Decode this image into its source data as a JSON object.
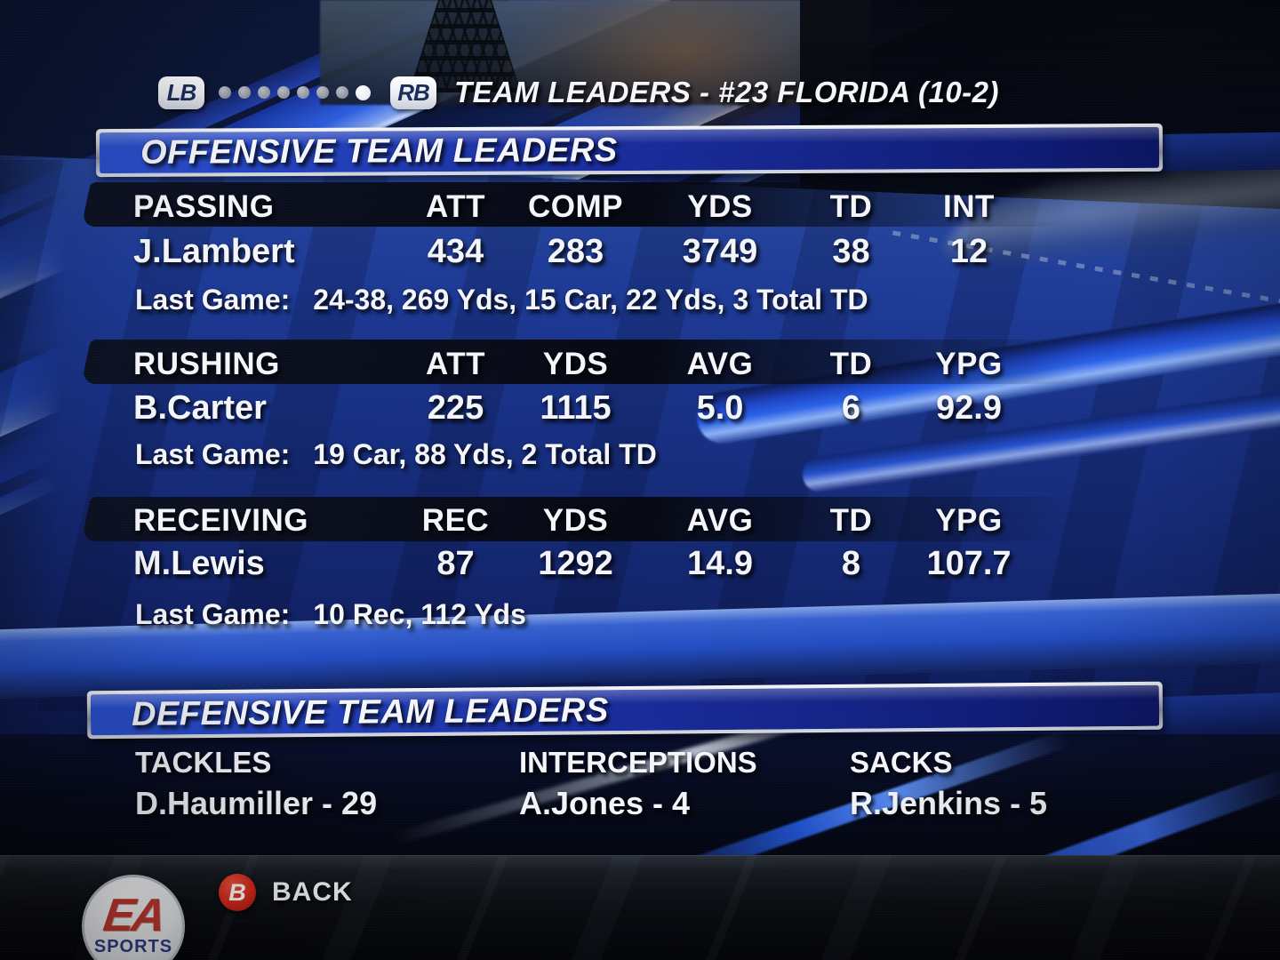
{
  "top_bar": {
    "lb_button": "LB",
    "rb_button": "RB",
    "title": "TEAM LEADERS - #23 FLORIDA (10-2)",
    "page_dots": {
      "total": 8,
      "active_index": 8
    }
  },
  "offense": {
    "banner": "OFFENSIVE TEAM LEADERS",
    "passing": {
      "category": "PASSING",
      "columns": [
        "ATT",
        "COMP",
        "YDS",
        "TD",
        "INT"
      ],
      "player": "J.Lambert",
      "values": [
        "434",
        "283",
        "3749",
        "38",
        "12"
      ],
      "last_game_label": "Last Game:",
      "last_game": "24-38, 269 Yds, 15 Car, 22 Yds, 3 Total TD"
    },
    "rushing": {
      "category": "RUSHING",
      "columns": [
        "ATT",
        "YDS",
        "AVG",
        "TD",
        "YPG"
      ],
      "player": "B.Carter",
      "values": [
        "225",
        "1115",
        "5.0",
        "6",
        "92.9"
      ],
      "last_game_label": "Last Game:",
      "last_game": "19 Car, 88 Yds, 2 Total TD"
    },
    "receiving": {
      "category": "RECEIVING",
      "columns": [
        "REC",
        "YDS",
        "AVG",
        "TD",
        "YPG"
      ],
      "player": "M.Lewis",
      "values": [
        "87",
        "1292",
        "14.9",
        "8",
        "107.7"
      ],
      "last_game_label": "Last Game:",
      "last_game": "10 Rec, 112 Yds"
    }
  },
  "defense": {
    "banner": "DEFENSIVE TEAM LEADERS",
    "stats": [
      {
        "label": "TACKLES",
        "leader": "D.Haumiller - 29"
      },
      {
        "label": "INTERCEPTIONS",
        "leader": "A.Jones - 4"
      },
      {
        "label": "SACKS",
        "leader": "R.Jenkins - 5"
      }
    ]
  },
  "footer": {
    "logo_top": "EA",
    "logo_bottom": "SPORTS",
    "back_button_glyph": "B",
    "back_label": "BACK"
  },
  "colors": {
    "banner_blue_light": "#2a50d0",
    "banner_blue_dark": "#0c1668",
    "swoosh_blue": "#2a62e8",
    "background_navy": "#0b1534",
    "back_button_red": "#d62718",
    "text_white": "#f3f5fa"
  }
}
